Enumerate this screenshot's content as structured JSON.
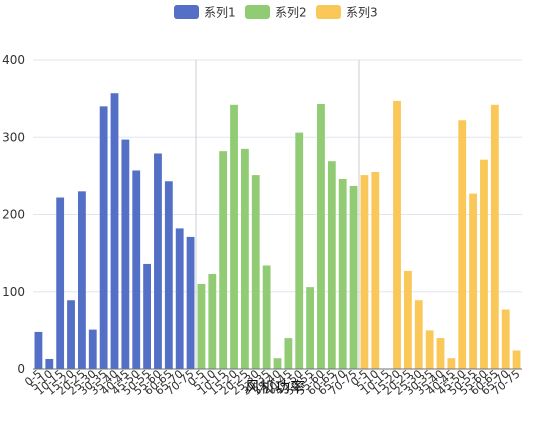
{
  "chart_data": {
    "type": "bar",
    "xlabel": "风机功率",
    "ylabel": "",
    "ylim": [
      0,
      400
    ],
    "yticks": [
      0,
      100,
      200,
      300,
      400
    ],
    "grid": true,
    "legend_position": "top-center",
    "series": [
      {
        "name": "系列1",
        "color": "#5470c6",
        "categories": [
          "0-5",
          "5-10",
          "10-15",
          "15-20",
          "20-25",
          "25-30",
          "30-35",
          "35-40",
          "40-45",
          "45-50",
          "50-55",
          "55-60",
          "60-65",
          "65-70",
          "70-75"
        ],
        "values": [
          48,
          13,
          222,
          89,
          230,
          51,
          340,
          357,
          297,
          257,
          136,
          279,
          243,
          182,
          171
        ]
      },
      {
        "name": "系列2",
        "color": "#91cc75",
        "categories": [
          "0-5",
          "5-10",
          "10-15",
          "15-20",
          "20-25",
          "25-30",
          "30-35",
          "35-40",
          "40-45",
          "45-50",
          "50-55",
          "55-60",
          "60-65",
          "65-70",
          "70-75"
        ],
        "values": [
          110,
          123,
          282,
          342,
          285,
          251,
          134,
          14,
          40,
          306,
          106,
          343,
          269,
          246,
          237
        ]
      },
      {
        "name": "系列3",
        "color": "#fac858",
        "categories": [
          "0-5",
          "5-10",
          "10-15",
          "15-20",
          "20-25",
          "25-30",
          "30-35",
          "35-40",
          "40-45",
          "45-50",
          "50-55",
          "55-60",
          "60-65",
          "65-70",
          "70-75"
        ],
        "values": [
          251,
          255,
          0,
          347,
          127,
          89,
          50,
          40,
          14,
          322,
          227,
          271,
          342,
          77,
          24
        ]
      }
    ]
  }
}
